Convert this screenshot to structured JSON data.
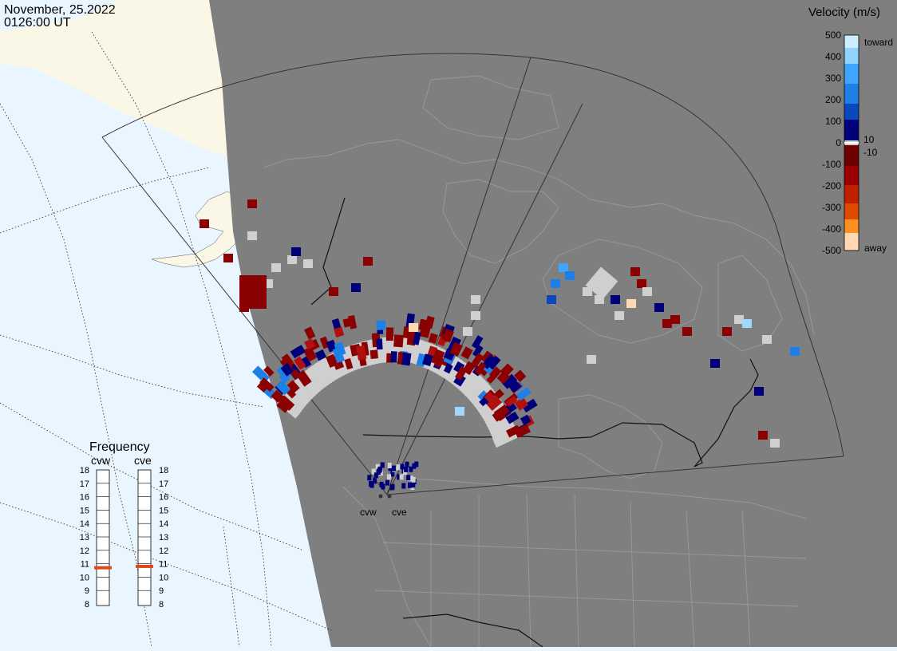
{
  "header": {
    "date": "November, 25.2022",
    "time": "0126:00 UT"
  },
  "colorbar": {
    "title": "Velocity (m/s)",
    "ticks": [
      "500",
      "400",
      "300",
      "200",
      "100",
      "10",
      "0",
      "-10",
      "-100",
      "-200",
      "-300",
      "-400",
      "-500"
    ],
    "toward_label": "toward",
    "away_label": "away",
    "colors": [
      "#ffd7b0",
      "#ff9020",
      "#e04a00",
      "#9b0000",
      "#6e0000",
      "#cfcfcf",
      "#00007a",
      "#0a3fb0",
      "#1e7fe6",
      "#9fd8ff"
    ]
  },
  "frequency": {
    "title": "Frequency",
    "radars": [
      "cvw",
      "cve"
    ],
    "scale": [
      "18",
      "17",
      "16",
      "15",
      "14",
      "13",
      "12",
      "11",
      "10",
      "9",
      "8"
    ],
    "selected_mhz": {
      "cvw": 10.7,
      "cve": 10.8
    },
    "marker_color": "#e04a1a"
  },
  "map": {
    "radar_labels": [
      "cvw",
      "cve"
    ],
    "land_color": "#7f7f7f",
    "ocean_color": "#eaf6ff",
    "outside_land_color": "#fbf7e6",
    "ground_scatter_color": "#cfcfcf"
  }
}
